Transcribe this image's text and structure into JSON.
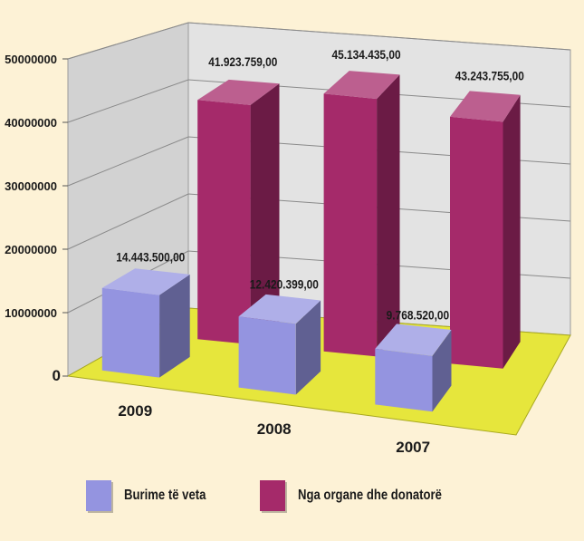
{
  "chart_data": {
    "type": "bar",
    "three_d": true,
    "categories": [
      "2009",
      "2008",
      "2007"
    ],
    "ylim": [
      0,
      50000000
    ],
    "y_ticks": [
      "0",
      "10000000",
      "20000000",
      "30000000",
      "40000000",
      "50000000"
    ],
    "grid": true,
    "legend_position": "bottom",
    "series": [
      {
        "name": "Burime të veta",
        "values": [
          14443500,
          12420399,
          9768520
        ],
        "labels": [
          "14.443.500,00",
          "12.420.399,00",
          "9.768.520,00"
        ],
        "color": "#9494e0"
      },
      {
        "name": "Nga organe dhe donatorë",
        "values": [
          41923759,
          45134435,
          43243755
        ],
        "labels": [
          "41.923.759,00",
          "45.134.435,00",
          "43.243.755,00"
        ],
        "color": "#a52a6a"
      }
    ],
    "colors": {
      "background": "#fdf2d6",
      "wall": "#d6d6d6",
      "floor": "#e6e63c"
    }
  }
}
